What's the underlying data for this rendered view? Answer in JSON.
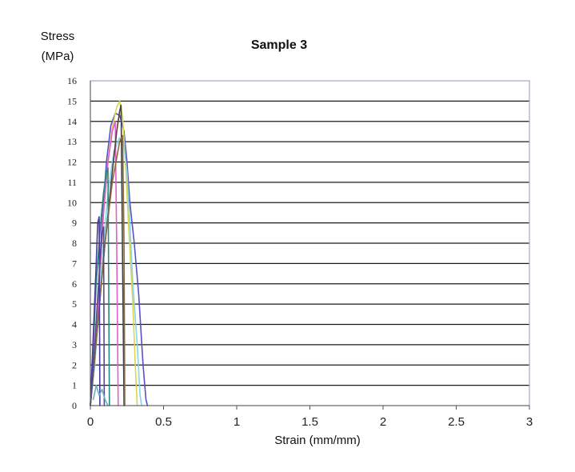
{
  "chart_data": {
    "type": "line",
    "title": "Sample 3",
    "ylabel_line1": "Stress",
    "ylabel_line2": "(MPa)",
    "xlabel": "Strain (mm/mm)",
    "xlim": [
      0,
      3
    ],
    "ylim": [
      0,
      16
    ],
    "x_ticks": [
      0,
      0.5,
      1,
      1.5,
      2,
      2.5,
      3
    ],
    "x_tick_labels": [
      "0",
      "0.5",
      "1",
      "1.5",
      "2",
      "2.5",
      "3"
    ],
    "y_ticks": [
      0,
      1,
      2,
      3,
      4,
      5,
      6,
      7,
      8,
      9,
      10,
      11,
      12,
      13,
      14,
      15,
      16
    ],
    "y_tick_labels": [
      "0",
      "1",
      "2",
      "3",
      "4",
      "5",
      "6",
      "7",
      "8",
      "9",
      "10",
      "11",
      "12",
      "13",
      "14",
      "15",
      "16"
    ],
    "grid": true,
    "legend": "none",
    "series": [
      {
        "color": "#5b4fc4",
        "x": [
          0,
          0.02,
          0.05,
          0.08,
          0.11,
          0.14,
          0.17,
          0.2,
          0.23,
          0.25,
          0.27,
          0.3,
          0.33,
          0.36,
          0.38,
          0.39
        ],
        "y": [
          0,
          1.5,
          5,
          9,
          12,
          13.8,
          14.4,
          14.3,
          13.5,
          12,
          10,
          8,
          5.5,
          2,
          0.3,
          0
        ]
      },
      {
        "color": "#d8d84a",
        "x": [
          0,
          0.03,
          0.06,
          0.09,
          0.12,
          0.15,
          0.18,
          0.2,
          0.22,
          0.24,
          0.26,
          0.29,
          0.31,
          0.32
        ],
        "y": [
          0,
          2,
          6,
          9.5,
          12,
          13.7,
          14.7,
          15,
          14.2,
          12,
          9,
          5,
          1.5,
          0
        ]
      },
      {
        "color": "#8ad3e6",
        "x": [
          0,
          0.03,
          0.06,
          0.09,
          0.12,
          0.16,
          0.2,
          0.23,
          0.25,
          0.27,
          0.29,
          0.32,
          0.34,
          0.35
        ],
        "y": [
          0,
          2,
          5,
          8,
          10.5,
          12.5,
          13.2,
          12.8,
          11.5,
          9,
          6,
          3,
          0.5,
          0
        ]
      },
      {
        "color": "#e060c8",
        "x": [
          0,
          0.03,
          0.06,
          0.09,
          0.12,
          0.15,
          0.17,
          0.18,
          0.19
        ],
        "y": [
          0,
          2.5,
          6,
          9.5,
          12,
          13.5,
          14,
          8,
          0
        ]
      },
      {
        "color": "#444444",
        "x": [
          0,
          0.05,
          0.1,
          0.15,
          0.18,
          0.2,
          0.21,
          0.22,
          0.23
        ],
        "y": [
          0,
          4,
          8,
          11.5,
          13.5,
          14.5,
          14.8,
          7,
          0
        ]
      },
      {
        "color": "#8a6a3c",
        "x": [
          0,
          0.05,
          0.1,
          0.15,
          0.2,
          0.22,
          0.23,
          0.235
        ],
        "y": [
          0,
          4,
          8,
          11,
          13,
          13.3,
          8,
          0
        ]
      },
      {
        "color": "#2a8a7a",
        "x": [
          0,
          0.02,
          0.04,
          0.07,
          0.09,
          0.11,
          0.12,
          0.125,
          0.13
        ],
        "y": [
          0,
          3,
          6,
          9,
          10.5,
          11.5,
          11.7,
          6,
          0
        ]
      },
      {
        "color": "#4a3aa0",
        "x": [
          0,
          0.02,
          0.04,
          0.05,
          0.06,
          0.065
        ],
        "y": [
          0,
          3.5,
          7,
          9,
          9.3,
          0
        ]
      },
      {
        "color": "#5a4a8a",
        "x": [
          0,
          0.03,
          0.06,
          0.08,
          0.09,
          0.095
        ],
        "y": [
          0,
          3,
          6.5,
          8.5,
          8.8,
          0
        ]
      },
      {
        "color": "#6ab0c8",
        "x": [
          0.02,
          0.04,
          0.06,
          0.08,
          0.1,
          0.12
        ],
        "y": [
          0.3,
          1,
          0.5,
          0.8,
          0.3,
          0
        ]
      }
    ]
  }
}
